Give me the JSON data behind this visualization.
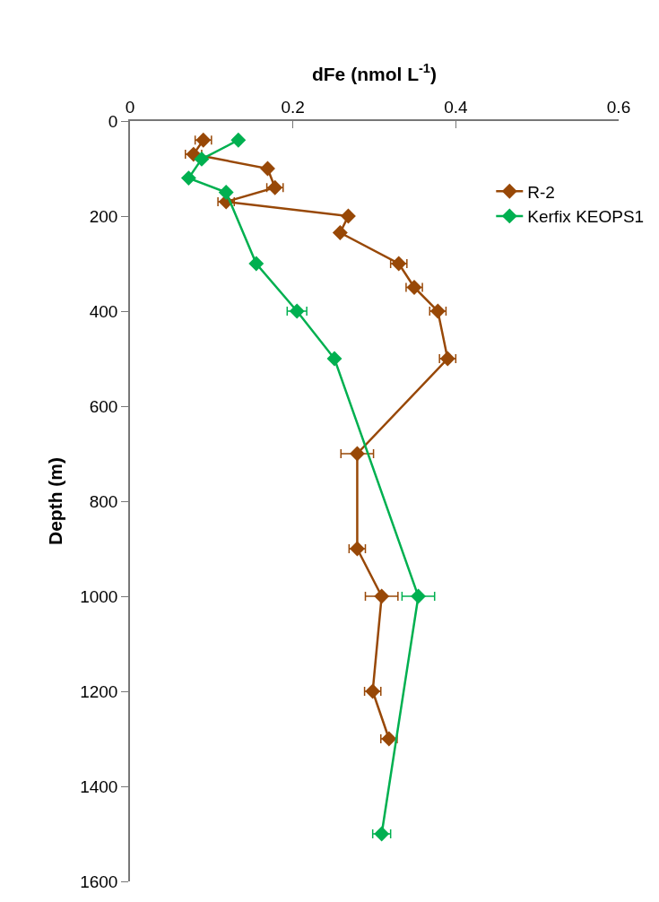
{
  "chart_data": {
    "type": "line",
    "xlabel": "dFe (nmol L$^{-1}$)",
    "ylabel": "Depth (m)",
    "xlim": [
      0,
      0.6
    ],
    "xticks": [
      0,
      0.2,
      0.4,
      0.6
    ],
    "ylim": [
      1600,
      0
    ],
    "yticks": [
      0,
      200,
      400,
      600,
      800,
      1000,
      1200,
      1400,
      1600
    ],
    "marker": "diamond",
    "legend": "top right",
    "grid": false,
    "series": [
      {
        "name": "R-2",
        "color": "#984807",
        "x": [
          0.09,
          0.078,
          0.169,
          0.178,
          0.118,
          0.268,
          0.258,
          0.33,
          0.349,
          0.378,
          0.39,
          0.279,
          0.279,
          0.309,
          0.298,
          0.318
        ],
        "values": [
          40,
          70,
          100,
          140,
          170,
          200,
          235,
          300,
          350,
          400,
          500,
          700,
          900,
          1000,
          1200,
          1300
        ],
        "xerrors": [
          0.01,
          0.01,
          null,
          0.01,
          0.01,
          null,
          null,
          0.01,
          0.01,
          0.01,
          0.01,
          0.02,
          0.01,
          0.02,
          0.01,
          0.01
        ]
      },
      {
        "name": "Kerfix KEOPS1",
        "color": "#00b050",
        "x": [
          0.133,
          0.088,
          0.072,
          0.118,
          0.155,
          0.205,
          0.251,
          0.354,
          0.309
        ],
        "values": [
          40,
          80,
          120,
          150,
          300,
          400,
          500,
          1000,
          1500
        ],
        "xerrors": [
          null,
          null,
          null,
          null,
          null,
          0.012,
          null,
          0.02,
          0.011
        ]
      }
    ]
  }
}
